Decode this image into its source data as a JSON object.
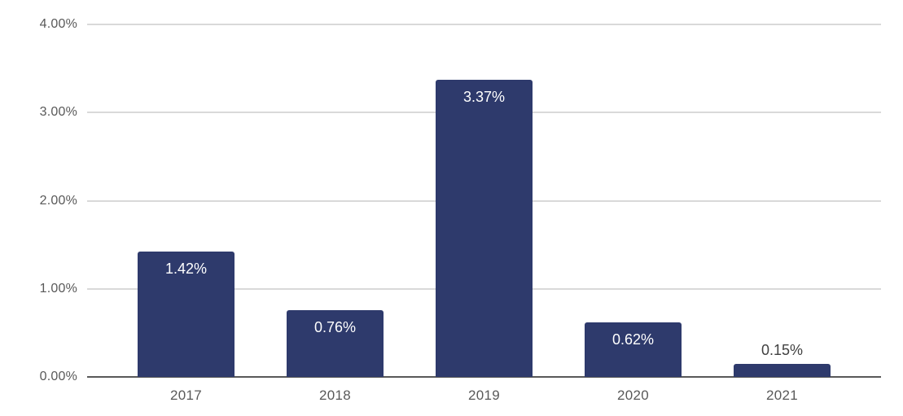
{
  "chart_data": {
    "type": "bar",
    "title": "",
    "xlabel": "",
    "ylabel": "",
    "categories": [
      "2017",
      "2018",
      "2019",
      "2020",
      "2021"
    ],
    "values": [
      1.42,
      0.76,
      3.37,
      0.62,
      0.15
    ],
    "data_labels": [
      "1.42%",
      "0.76%",
      "3.37%",
      "0.62%",
      "0.15%"
    ],
    "ylim": [
      0,
      4
    ],
    "yticks": [
      {
        "value": 0,
        "label": "0.00%"
      },
      {
        "value": 1,
        "label": "1.00%"
      },
      {
        "value": 2,
        "label": "2.00%"
      },
      {
        "value": 3,
        "label": "3.00%"
      },
      {
        "value": 4,
        "label": "4.00%"
      }
    ],
    "grid": true,
    "legend": "none",
    "colors": {
      "bar": "#2E3A6C",
      "gridline": "#D9D9D9",
      "axis_line": "#595959",
      "tick_label": "#595959",
      "data_label_inside": "#FFFFFF",
      "data_label_outside": "#404040"
    }
  }
}
